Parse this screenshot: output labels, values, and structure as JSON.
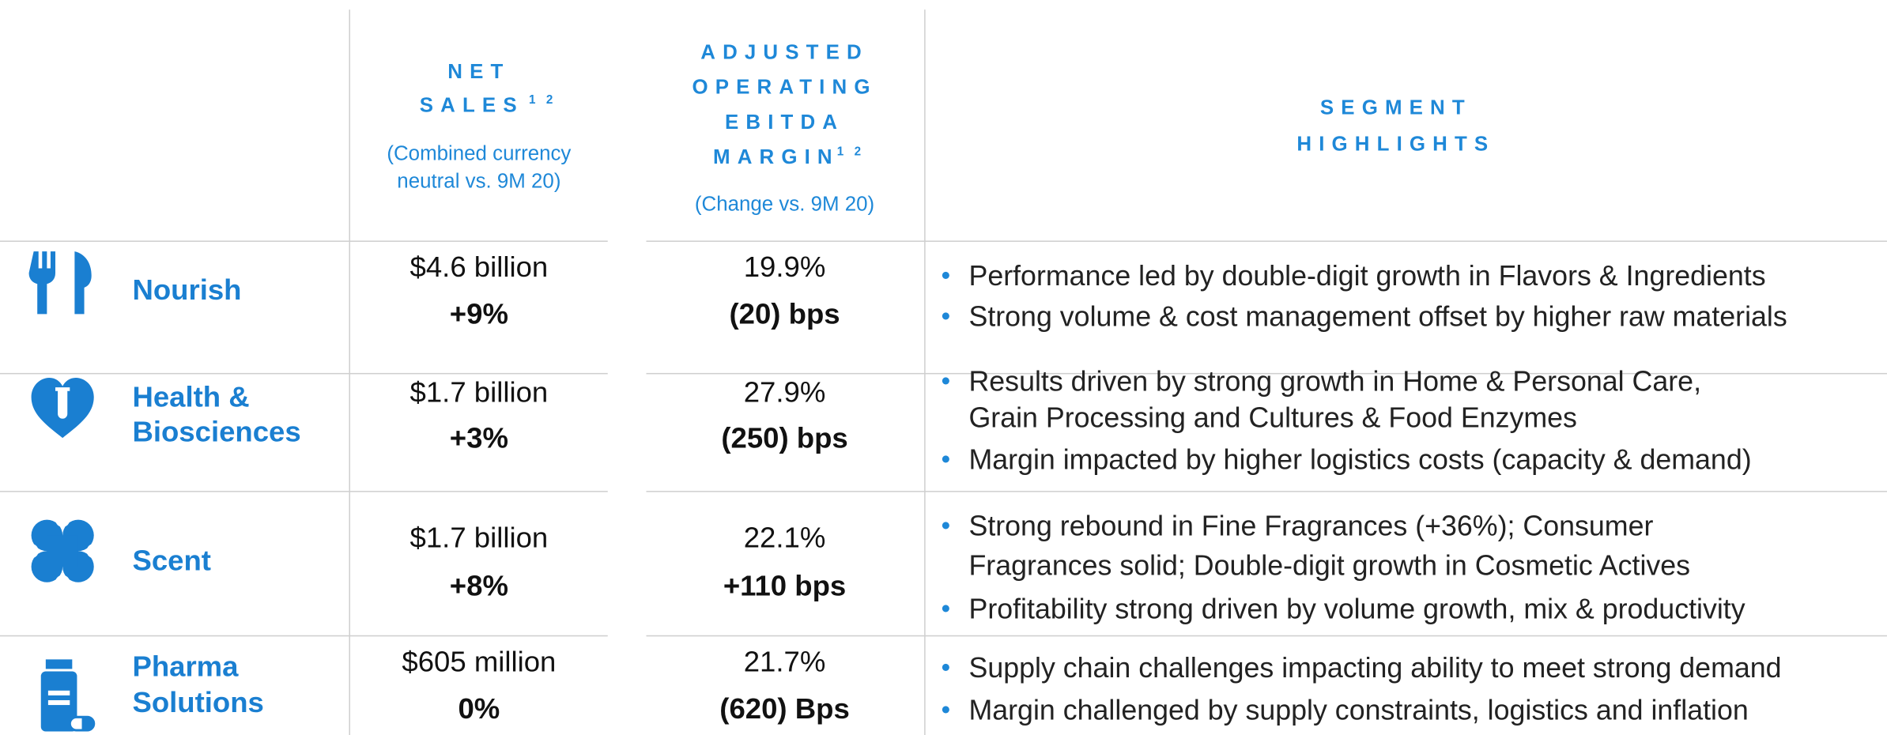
{
  "header": {
    "net_sales": {
      "title": [
        "NET",
        "SALES"
      ],
      "superscript": "1 2",
      "subtitle": [
        "(Combined currency",
        "neutral vs. 9M 20)"
      ]
    },
    "ebitda": {
      "title": [
        "ADJUSTED",
        "OPERATING",
        "EBITDA",
        "MARGIN"
      ],
      "superscript": "1 2",
      "subtitle": [
        "(Change vs. 9M 20)"
      ]
    },
    "highlights": {
      "title": [
        "SEGMENT",
        "HIGHLIGHTS"
      ]
    }
  },
  "rows": [
    {
      "name": [
        "Nourish"
      ],
      "net_sales": "$4.6 billion",
      "net_change": "+9%",
      "margin": "19.9%",
      "margin_change": "(20) bps",
      "bullets": [
        [
          "Performance led by double-digit growth in Flavors & Ingredients"
        ],
        [
          "Strong volume & cost management offset by higher raw materials"
        ]
      ]
    },
    {
      "name": [
        "Health &",
        "Biosciences"
      ],
      "net_sales": "$1.7 billion",
      "net_change": "+3%",
      "margin": "27.9%",
      "margin_change": "(250) bps",
      "bullets": [
        [
          "Results driven by strong growth in Home & Personal Care,",
          "Grain Processing and Cultures & Food Enzymes"
        ],
        [
          "Margin impacted by higher logistics costs (capacity & demand)"
        ]
      ]
    },
    {
      "name": [
        "Scent"
      ],
      "net_sales": "$1.7 billion",
      "net_change": "+8%",
      "margin": "22.1%",
      "margin_change": "+110 bps",
      "bullets": [
        [
          "Strong rebound in Fine Fragrances (+36%); Consumer",
          "Fragrances solid; Double-digit growth in Cosmetic Actives"
        ],
        [
          "Profitability strong driven by volume growth, mix & productivity"
        ]
      ]
    },
    {
      "name": [
        "Pharma",
        "Solutions"
      ],
      "net_sales": "$605 million",
      "net_change": "0%",
      "margin": "21.7%",
      "margin_change": "(620) Bps",
      "bullets": [
        [
          "Supply chain challenges impacting ability to meet strong demand"
        ],
        [
          "Margin challenged by supply constraints, logistics and inflation"
        ]
      ]
    }
  ]
}
